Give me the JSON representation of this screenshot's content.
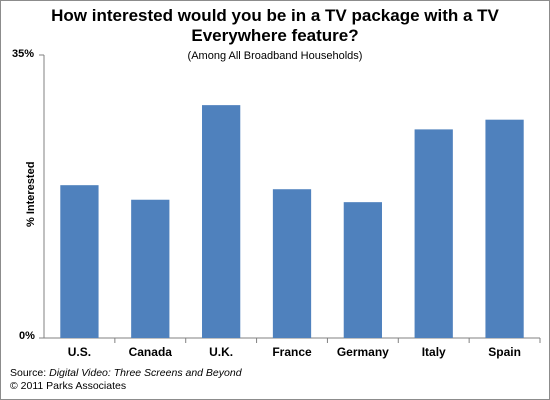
{
  "chart_data": {
    "type": "bar",
    "title_line1": "How interested would you be in a TV package with a TV",
    "title_line2": "Everywhere feature?",
    "subtitle": "(Among All Broadband Households)",
    "ylabel": "% Interested",
    "ylim": [
      0,
      35
    ],
    "ytick_labels": [
      "35%",
      "0%"
    ],
    "categories": [
      "U.S.",
      "Canada",
      "U.K.",
      "France",
      "Germany",
      "Italy",
      "Spain"
    ],
    "values": [
      18.9,
      17.1,
      28.8,
      18.4,
      16.8,
      25.8,
      27.0
    ],
    "bar_color": "#4f81bd",
    "grid": false,
    "legend": "none"
  },
  "source": {
    "prefix": "Source: ",
    "title": "Digital Video: Three Screens and Beyond",
    "copyright": "© 2011 Parks Associates"
  }
}
